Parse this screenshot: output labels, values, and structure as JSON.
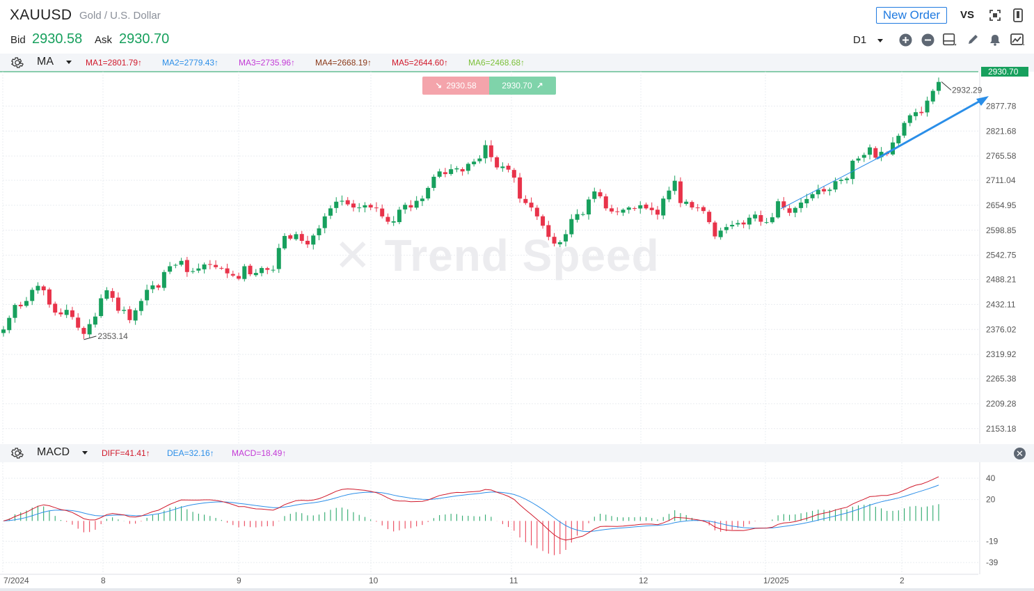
{
  "header": {
    "symbol": "XAUUSD",
    "description": "Gold / U.S. Dollar",
    "bid_label": "Bid",
    "bid_value": "2930.58",
    "ask_label": "Ask",
    "ask_value": "2930.70",
    "new_order_label": "New Order",
    "vs_label": "VS",
    "period": "D1"
  },
  "toolbar_icons": [
    "fullscreen-icon",
    "mobile-icon",
    "zoom-in-icon",
    "zoom-out-icon",
    "layout-icon",
    "draw-icon",
    "alert-icon",
    "chart-type-icon"
  ],
  "main_indicator": {
    "name": "MA",
    "items": [
      {
        "label": "MA1=2801.79↑",
        "color": "#d0182a"
      },
      {
        "label": "MA2=2779.43↑",
        "color": "#2b8ee8"
      },
      {
        "label": "MA3=2735.96↑",
        "color": "#c33ad6"
      },
      {
        "label": "MA4=2668.19↑",
        "color": "#8b3a1a"
      },
      {
        "label": "MA5=2644.60↑",
        "color": "#d0182a"
      },
      {
        "label": "MA6=2468.68↑",
        "color": "#7cc03a"
      }
    ]
  },
  "quote": {
    "sell": "2930.58",
    "buy": "2930.70",
    "current_tag": "2930.70"
  },
  "watermark": "Trend Speed",
  "colors": {
    "up": "#17a05d",
    "down": "#e8334a",
    "accent": "#1f7ae0",
    "arrow": "#2a8ee8"
  },
  "chart_data": [
    {
      "type": "candlestick",
      "title": "",
      "price_axis": [
        "2877.78",
        "2821.68",
        "2765.58",
        "2711.04",
        "2654.95",
        "2598.85",
        "2542.75",
        "2488.21",
        "2432.11",
        "2376.02",
        "2319.92",
        "2265.38",
        "2209.28",
        "2153.18"
      ],
      "time_axis": [
        "7/2024",
        "8",
        "9",
        "10",
        "11",
        "12",
        "1/2025",
        "2"
      ],
      "ylim": [
        2120,
        2955
      ],
      "annotations": {
        "low": "2353.14",
        "high": "2932.29"
      },
      "close_series": [
        2376,
        2402,
        2431,
        2428,
        2440,
        2465,
        2474,
        2464,
        2432,
        2414,
        2410,
        2420,
        2404,
        2380,
        2366,
        2388,
        2405,
        2446,
        2464,
        2447,
        2418,
        2420,
        2397,
        2419,
        2440,
        2465,
        2475,
        2470,
        2505,
        2518,
        2521,
        2530,
        2505,
        2507,
        2513,
        2522,
        2522,
        2516,
        2513,
        2502,
        2497,
        2490,
        2518,
        2500,
        2503,
        2514,
        2510,
        2510,
        2559,
        2586,
        2580,
        2590,
        2575,
        2567,
        2587,
        2603,
        2630,
        2648,
        2663,
        2665,
        2657,
        2650,
        2650,
        2655,
        2650,
        2649,
        2630,
        2618,
        2619,
        2645,
        2656,
        2650,
        2665,
        2670,
        2694,
        2719,
        2731,
        2725,
        2736,
        2738,
        2731,
        2748,
        2753,
        2760,
        2790,
        2763,
        2740,
        2742,
        2735,
        2717,
        2670,
        2660,
        2650,
        2630,
        2609,
        2584,
        2569,
        2572,
        2590,
        2624,
        2635,
        2635,
        2668,
        2686,
        2675,
        2648,
        2641,
        2640,
        2645,
        2650,
        2648,
        2655,
        2648,
        2644,
        2634,
        2670,
        2688,
        2710,
        2660,
        2663,
        2650,
        2649,
        2642,
        2617,
        2585,
        2598,
        2606,
        2611,
        2615,
        2612,
        2627,
        2634,
        2618,
        2617,
        2628,
        2664,
        2650,
        2638,
        2649,
        2661,
        2669,
        2680,
        2690,
        2686,
        2690,
        2709,
        2712,
        2715,
        2755,
        2760,
        2768,
        2785,
        2762,
        2775,
        2770,
        2796,
        2811,
        2840,
        2857,
        2864,
        2862,
        2890,
        2912,
        2932
      ]
    },
    {
      "type": "macd",
      "title": "",
      "name": "MACD",
      "items": [
        {
          "label": "DIFF=41.41↑",
          "color": "#d0182a"
        },
        {
          "label": "DEA=32.16↑",
          "color": "#2b8ee8"
        },
        {
          "label": "MACD=18.49↑",
          "color": "#c33ad6"
        }
      ],
      "y_axis": [
        "40",
        "20",
        "-19",
        "-39"
      ],
      "ylim": [
        -50,
        55
      ],
      "values": {
        "DIFF": 41.41,
        "DEA": 32.16,
        "MACD": 18.49
      }
    }
  ]
}
